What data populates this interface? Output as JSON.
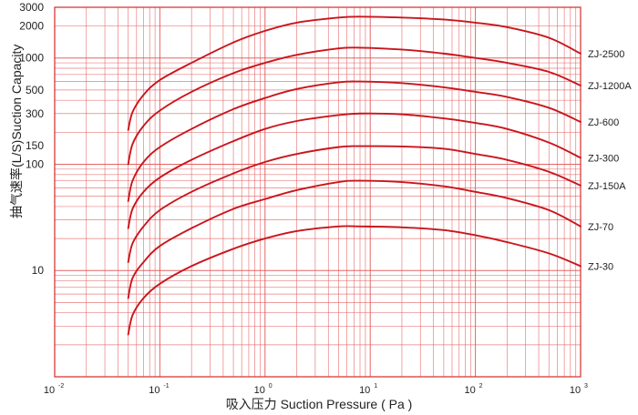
{
  "chart_data": {
    "type": "line",
    "title": "",
    "xlabel": "吸入压力 Suction Pressure ( Pa )",
    "ylabel": "抽气速率(L/S)Suction Capacity",
    "x_scale": "log",
    "y_scale": "log",
    "xlim": [
      0.01,
      1000
    ],
    "ylim": [
      1,
      3000
    ],
    "grid": true,
    "x_ticks": [
      {
        "base": "10",
        "exp": "-2"
      },
      {
        "base": "10",
        "exp": "-1"
      },
      {
        "base": "10",
        "exp": "0"
      },
      {
        "base": "10",
        "exp": "1"
      },
      {
        "base": "10",
        "exp": "2"
      },
      {
        "base": "10",
        "exp": "3"
      }
    ],
    "y_ticks": [
      "3000",
      "2000",
      "1000",
      "500",
      "300",
      "150",
      "100",
      "10"
    ],
    "series": [
      {
        "name": "ZJ-2500",
        "x": [
          0.05,
          0.055,
          0.07,
          0.1,
          0.2,
          0.5,
          1,
          2,
          5,
          8,
          20,
          50,
          100,
          200,
          500,
          1000
        ],
        "y": [
          210,
          310,
          450,
          620,
          900,
          1400,
          1800,
          2150,
          2400,
          2450,
          2400,
          2300,
          2150,
          1950,
          1550,
          1100
        ]
      },
      {
        "name": "ZJ-1200A",
        "x": [
          0.05,
          0.055,
          0.07,
          0.1,
          0.2,
          0.5,
          1,
          2,
          5,
          8,
          20,
          50,
          100,
          200,
          500,
          1000
        ],
        "y": [
          100,
          155,
          230,
          320,
          480,
          720,
          900,
          1070,
          1230,
          1250,
          1200,
          1100,
          1000,
          900,
          740,
          550
        ]
      },
      {
        "name": "ZJ-600",
        "x": [
          0.05,
          0.055,
          0.07,
          0.1,
          0.2,
          0.5,
          1,
          2,
          5,
          8,
          20,
          50,
          100,
          200,
          500,
          1000
        ],
        "y": [
          45,
          70,
          105,
          145,
          215,
          330,
          420,
          510,
          590,
          600,
          580,
          530,
          480,
          430,
          340,
          250
        ]
      },
      {
        "name": "ZJ-300",
        "x": [
          0.05,
          0.055,
          0.07,
          0.1,
          0.2,
          0.5,
          1,
          2,
          5,
          8,
          20,
          50,
          100,
          200,
          500,
          1000
        ],
        "y": [
          25,
          38,
          55,
          75,
          110,
          165,
          215,
          255,
          290,
          300,
          295,
          270,
          245,
          215,
          160,
          115
        ]
      },
      {
        "name": "ZJ-150A",
        "x": [
          0.05,
          0.055,
          0.07,
          0.1,
          0.2,
          0.5,
          1,
          2,
          5,
          8,
          20,
          50,
          100,
          200,
          500,
          1000
        ],
        "y": [
          12,
          18,
          26,
          37,
          55,
          82,
          105,
          125,
          145,
          148,
          147,
          140,
          125,
          110,
          85,
          63
        ]
      },
      {
        "name": "ZJ-70",
        "x": [
          0.05,
          0.055,
          0.07,
          0.1,
          0.2,
          0.5,
          1,
          2,
          5,
          8,
          20,
          50,
          100,
          200,
          500,
          1000
        ],
        "y": [
          5.5,
          8.5,
          12,
          17,
          25,
          38,
          47,
          57,
          68,
          70,
          68,
          62,
          55,
          48,
          37,
          26
        ]
      },
      {
        "name": "ZJ-30",
        "x": [
          0.05,
          0.055,
          0.07,
          0.1,
          0.2,
          0.5,
          1,
          2,
          5,
          8,
          20,
          50,
          100,
          200,
          500,
          1000
        ],
        "y": [
          2.5,
          3.8,
          5.5,
          7.5,
          11,
          16,
          20,
          23.5,
          26,
          26,
          25.5,
          24,
          21.5,
          18.5,
          14.5,
          11
        ]
      }
    ],
    "colors": {
      "grid": "#e25555",
      "axis": "#d42a2a",
      "curve": "#c8161d",
      "text": "#222222"
    }
  }
}
